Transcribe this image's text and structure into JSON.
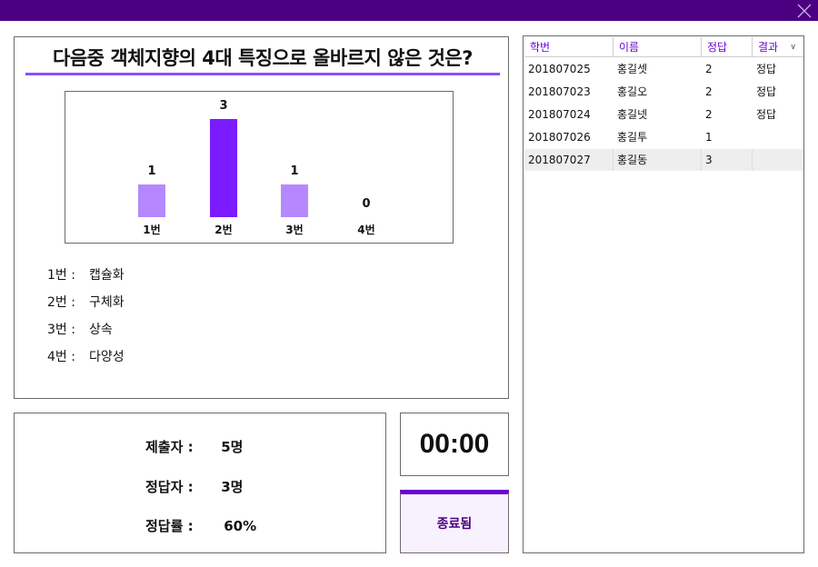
{
  "window": {
    "close_icon": "close-icon"
  },
  "question": {
    "title": "다음중 객체지향의 4대 특징으로 올바르지 않은 것은?",
    "options": [
      {
        "num": "1번 :",
        "text": "캡슐화"
      },
      {
        "num": "2번 :",
        "text": "구체화"
      },
      {
        "num": "3번 :",
        "text": "상속"
      },
      {
        "num": "4번 :",
        "text": "다양성"
      }
    ]
  },
  "chart_data": {
    "type": "bar",
    "categories": [
      "1번",
      "2번",
      "3번",
      "4번"
    ],
    "values": [
      1,
      3,
      1,
      0
    ],
    "ylim": [
      0,
      3
    ],
    "highlight_index": 1,
    "colors": {
      "normal": "#b688ff",
      "highlight": "#7a1cff"
    },
    "title": "",
    "xlabel": "",
    "ylabel": ""
  },
  "stats": {
    "submitters_label": "제출자 :",
    "submitters_value": "5명",
    "correct_label": "정답자 :",
    "correct_value": "3명",
    "rate_label": "정답률 :",
    "rate_value": "60%"
  },
  "timer": {
    "value": "00:00"
  },
  "end_button": {
    "label": "종료됨"
  },
  "results": {
    "columns": [
      "학번",
      "이름",
      "정답",
      "결과"
    ],
    "sort_icon": "sort-indicator-icon",
    "rows": [
      {
        "id": "201807025",
        "name": "홍길셋",
        "answer": "2",
        "result": "정답"
      },
      {
        "id": "201807023",
        "name": "홍길오",
        "answer": "2",
        "result": "정답"
      },
      {
        "id": "201807024",
        "name": "홍길넷",
        "answer": "2",
        "result": "정답"
      },
      {
        "id": "201807026",
        "name": "홍길투",
        "answer": "1",
        "result": ""
      },
      {
        "id": "201807027",
        "name": "홍길동",
        "answer": "3",
        "result": ""
      }
    ],
    "selected_row": 4
  },
  "accent_color": "#4b0082"
}
